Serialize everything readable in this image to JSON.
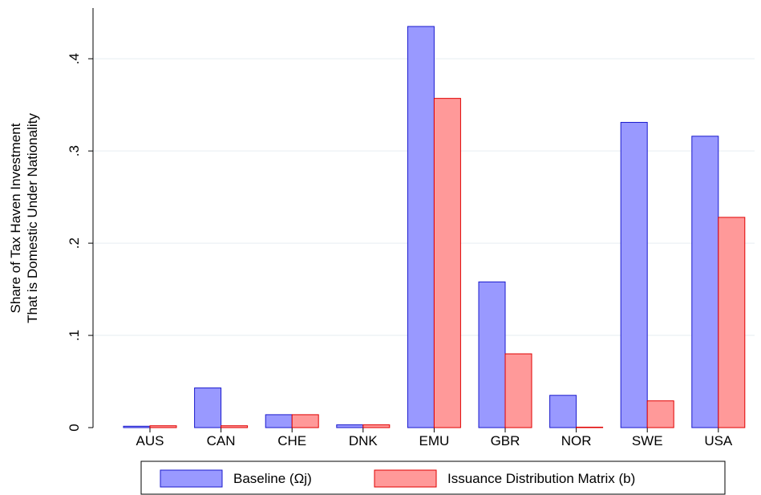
{
  "chart_data": {
    "type": "bar",
    "y_label": [
      "Share of Tax Haven Investment",
      "That is Domestic Under Nationality"
    ],
    "categories": [
      "AUS",
      "CAN",
      "CHE",
      "DNK",
      "EMU",
      "GBR",
      "NOR",
      "SWE",
      "USA"
    ],
    "series": [
      {
        "name": "Baseline (Ωj)",
        "color": "#9999ff",
        "values": [
          0.0015,
          0.043,
          0.014,
          0.003,
          0.435,
          0.158,
          0.035,
          0.331,
          0.316
        ]
      },
      {
        "name": "Issuance Distribution Matrix (b)",
        "color": "#ff9999",
        "values": [
          0.002,
          0.002,
          0.014,
          0.003,
          0.357,
          0.08,
          0.0005,
          0.029,
          0.228
        ]
      }
    ],
    "ylim": [
      0,
      0.455
    ],
    "yticks": [
      0,
      {
        "value": 0.1,
        "label": ".1"
      },
      {
        "value": 0.2,
        "label": ".2"
      },
      {
        "value": 0.3,
        "label": ".3"
      },
      {
        "value": 0.4,
        "label": ".4"
      }
    ],
    "grid": true
  }
}
